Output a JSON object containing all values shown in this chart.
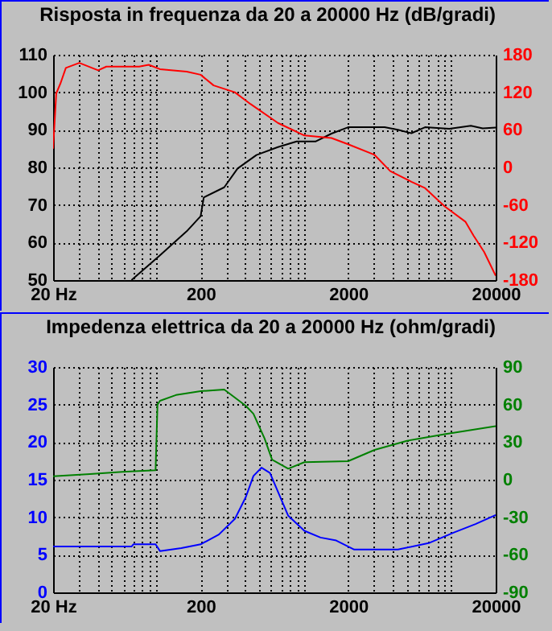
{
  "chart_data": [
    {
      "type": "line",
      "title": "Risposta in frequenza da 20 a 20000 Hz (dB/gradi)",
      "log": "x",
      "grid": true,
      "marker": "none",
      "line_style": "solid",
      "xlim": [
        20,
        20000
      ],
      "xticks": [
        {
          "value": 20,
          "label": "20 Hz"
        },
        {
          "value": 30,
          "label": null
        },
        {
          "value": 40,
          "label": null
        },
        {
          "value": 50,
          "label": null
        },
        {
          "value": 60,
          "label": null
        },
        {
          "value": 70,
          "label": null
        },
        {
          "value": 80,
          "label": null
        },
        {
          "value": 90,
          "label": null
        },
        {
          "value": 100,
          "label": null
        },
        200,
        {
          "value": 300,
          "label": null
        },
        {
          "value": 400,
          "label": null
        },
        {
          "value": 500,
          "label": null
        },
        {
          "value": 600,
          "label": null
        },
        {
          "value": 700,
          "label": null
        },
        {
          "value": 800,
          "label": null
        },
        {
          "value": 900,
          "label": null
        },
        {
          "value": 1000,
          "label": null
        },
        2000,
        {
          "value": 3000,
          "label": null
        },
        {
          "value": 4000,
          "label": null
        },
        {
          "value": 5000,
          "label": null
        },
        {
          "value": 6000,
          "label": null
        },
        {
          "value": 7000,
          "label": null
        },
        {
          "value": 8000,
          "label": null
        },
        {
          "value": 9000,
          "label": null
        },
        {
          "value": 10000,
          "label": null
        },
        20000
      ],
      "ylim": [
        50,
        110
      ],
      "yticks": [
        50,
        60,
        70,
        80,
        90,
        100,
        110
      ],
      "y2lim": [
        -180,
        180
      ],
      "y2ticks": [
        -180,
        -120,
        -60,
        0,
        60,
        120,
        180
      ],
      "series": [
        {
          "color": "#000000",
          "x": [
            68,
            106,
            161,
            200,
            210,
            289,
            356,
            478,
            668,
            895,
            1200,
            1542,
            2000,
            3532,
            4350,
            5370,
            6640,
            9700,
            13580,
            16340,
            20000
          ],
          "values": [
            50,
            56.6,
            63,
            67,
            72,
            74.7,
            79.7,
            83.3,
            85.4,
            86.9,
            86.9,
            89,
            90.7,
            90.7,
            90,
            89.1,
            90.7,
            90.3,
            91.1,
            90.4,
            90.6
          ]
        },
        {
          "color": "#ff0000",
          "axis": "y2",
          "x": [
            20,
            21,
            22.5,
            24.4,
            30.1,
            40.4,
            45.9,
            76.6,
            89,
            106,
            161,
            200,
            245,
            341,
            437,
            668,
            1010,
            1542,
            2000,
            3020,
            3860,
            5370,
            6640,
            9000,
            12500,
            14160,
            16700,
            20000
          ],
          "values": [
            30,
            118,
            135,
            159,
            167,
            155,
            161,
            161,
            164,
            157,
            153,
            148,
            131,
            120,
            101,
            71,
            51,
            47,
            37,
            20,
            -6,
            -23,
            -33,
            -62,
            -87,
            -109,
            -135,
            -173
          ]
        }
      ]
    },
    {
      "type": "line",
      "title": "Impedenza elettrica da 20 a 20000 Hz (ohm/gradi)",
      "log": "x",
      "grid": true,
      "marker": "none",
      "line_style": "solid",
      "xlim": [
        20,
        20000
      ],
      "xticks": [
        {
          "value": 20,
          "label": "20 Hz"
        },
        {
          "value": 30,
          "label": null
        },
        {
          "value": 40,
          "label": null
        },
        {
          "value": 50,
          "label": null
        },
        {
          "value": 60,
          "label": null
        },
        {
          "value": 70,
          "label": null
        },
        {
          "value": 80,
          "label": null
        },
        {
          "value": 90,
          "label": null
        },
        {
          "value": 100,
          "label": null
        },
        200,
        {
          "value": 300,
          "label": null
        },
        {
          "value": 400,
          "label": null
        },
        {
          "value": 500,
          "label": null
        },
        {
          "value": 600,
          "label": null
        },
        {
          "value": 700,
          "label": null
        },
        {
          "value": 800,
          "label": null
        },
        {
          "value": 900,
          "label": null
        },
        {
          "value": 1000,
          "label": null
        },
        2000,
        {
          "value": 3000,
          "label": null
        },
        {
          "value": 4000,
          "label": null
        },
        {
          "value": 5000,
          "label": null
        },
        {
          "value": 6000,
          "label": null
        },
        {
          "value": 7000,
          "label": null
        },
        {
          "value": 8000,
          "label": null
        },
        {
          "value": 9000,
          "label": null
        },
        {
          "value": 10000,
          "label": null
        },
        20000
      ],
      "ylim": [
        0,
        30
      ],
      "yticks": [
        0,
        5,
        10,
        15,
        20,
        25,
        30
      ],
      "y2lim": [
        -90,
        90
      ],
      "y2ticks": [
        -90,
        -60,
        -30,
        0,
        30,
        60,
        90
      ],
      "series": [
        {
          "color": "#0000ff",
          "x": [
            20,
            68,
            70,
            99,
            106,
            148,
            200,
            266,
            342,
            405,
            456,
            518,
            590,
            785,
            1010,
            1300,
            1660,
            2200,
            4350,
            7130,
            10500,
            14600,
            20000
          ],
          "values": [
            6.1,
            6.1,
            6.4,
            6.4,
            5.5,
            5.9,
            6.4,
            7.7,
            9.8,
            12.7,
            15.5,
            16.6,
            15.9,
            10.2,
            8.2,
            7.3,
            6.9,
            5.7,
            5.7,
            6.6,
            8,
            9.1,
            10.3
          ]
        },
        {
          "color": "#008000",
          "axis": "y2",
          "x": [
            20,
            35.6,
            59,
            99,
            102,
            106,
            136,
            200,
            289,
            405,
            456,
            542,
            610,
            785,
            1010,
            2000,
            3020,
            5000,
            9000,
            20000
          ],
          "values": [
            2.7,
            4.5,
            6.2,
            7.5,
            60,
            63,
            67.6,
            70.7,
            72,
            59,
            52.6,
            33,
            16,
            8.8,
            14,
            14.8,
            23.8,
            31,
            36.3,
            42.7
          ]
        }
      ]
    }
  ]
}
